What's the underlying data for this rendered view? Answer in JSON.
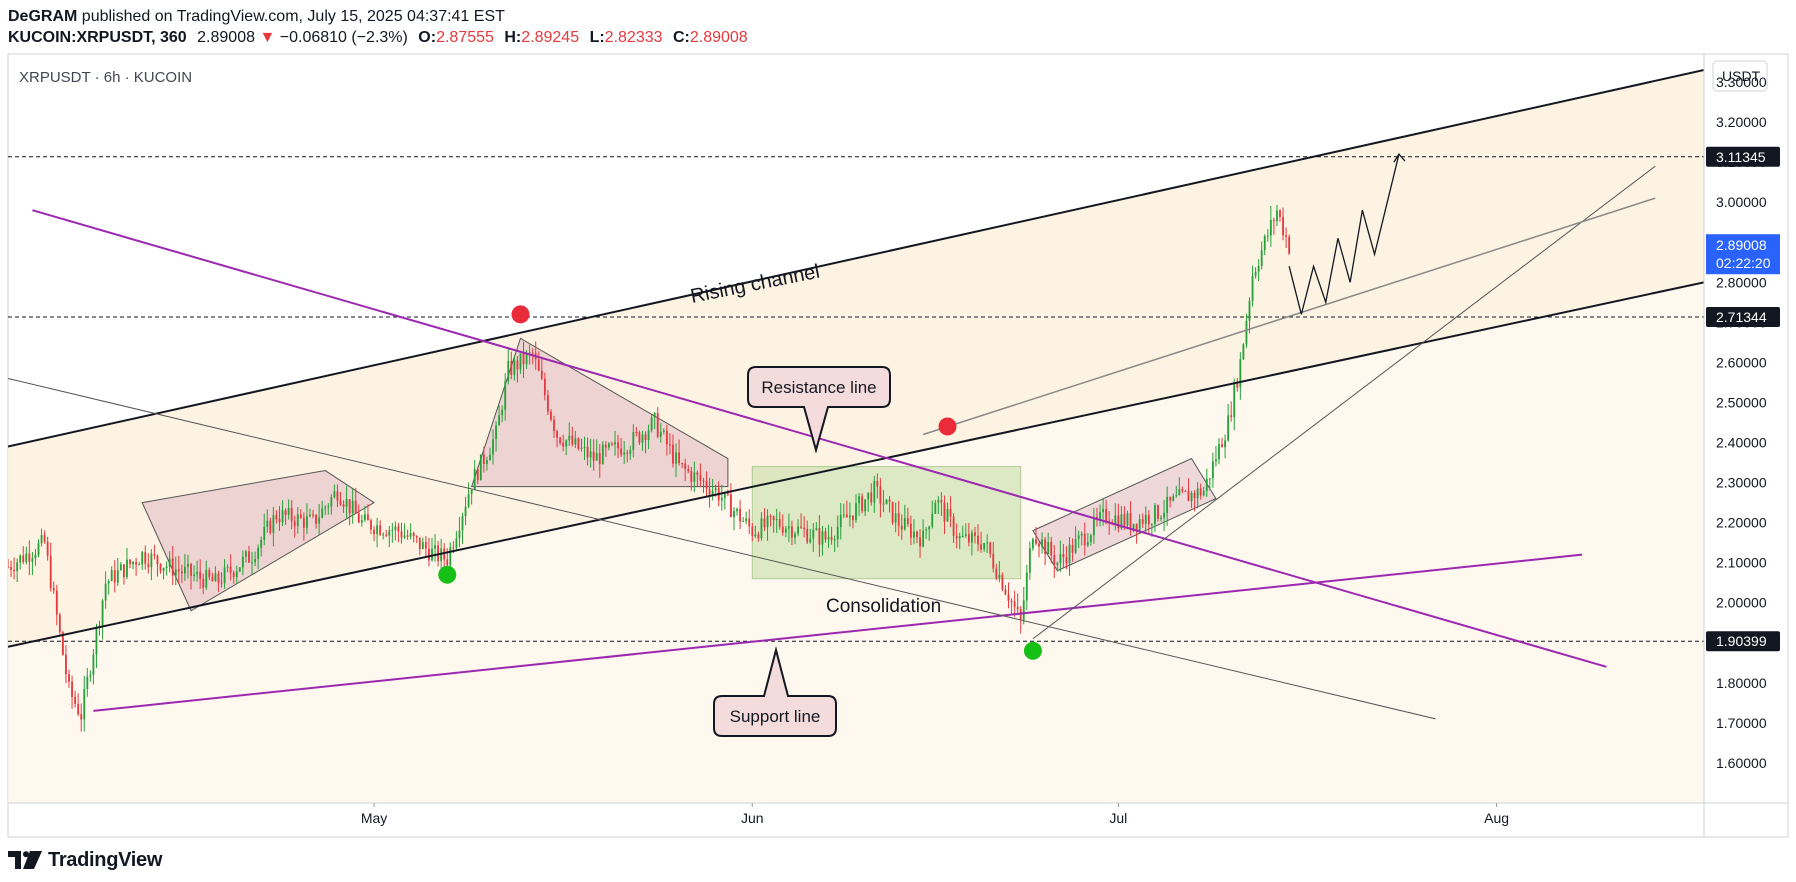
{
  "header": {
    "author": "DeGRAM",
    "published": "published on TradingView.com, July 15, 2025 04:37:41 EST",
    "symbol": "KUCOIN:XRPUSDT, 360",
    "last": "2.89008",
    "change_arrow": "▼",
    "change": "−0.06810 (−2.3%)",
    "o_label": "O:",
    "o_value": "2.87555",
    "h_label": "H:",
    "h_value": "2.89245",
    "l_label": "L:",
    "l_value": "2.82333",
    "c_label": "C:",
    "c_value": "2.89008"
  },
  "footer": {
    "brand": "TradingView"
  },
  "colors": {
    "down": "#e5393d",
    "up": "#26a13a",
    "purple": "#9c27b0",
    "price_badge": "#2962ff",
    "background_band": "#fdf2e0"
  },
  "chart_data": {
    "type": "candlestick",
    "title": "XRPUSDT · 6h · KUCOIN",
    "currency": "USDT",
    "x_ticks": [
      {
        "label": "May",
        "date": "2025-05-01"
      },
      {
        "label": "Jun",
        "date": "2025-06-01"
      },
      {
        "label": "Jul",
        "date": "2025-07-01"
      },
      {
        "label": "Aug",
        "date": "2025-08-01"
      }
    ],
    "x_range": [
      "2025-04-01",
      "2025-08-18"
    ],
    "y_ticks": [
      "1.60000",
      "1.70000",
      "1.80000",
      "1.90000",
      "2.00000",
      "2.10000",
      "2.20000",
      "2.30000",
      "2.40000",
      "2.50000",
      "2.60000",
      "2.70000",
      "2.80000",
      "3.00000",
      "3.10000",
      "3.20000",
      "3.30000"
    ],
    "y_range": [
      1.5,
      3.37
    ],
    "price_labels": [
      {
        "value": "3.11345",
        "style": "dark"
      },
      {
        "value": "2.71344",
        "style": "dark"
      },
      {
        "value": "1.90399",
        "style": "dark"
      },
      {
        "value": "2.89008",
        "countdown": "02:22:20",
        "style": "current"
      }
    ],
    "horizontal_levels": [
      3.11345,
      2.71344,
      1.90399
    ],
    "close_path": [
      [
        "2025-04-01",
        2.09
      ],
      [
        "2025-04-04",
        2.15
      ],
      [
        "2025-04-06",
        1.78
      ],
      [
        "2025-04-07",
        1.72
      ],
      [
        "2025-04-09",
        2.05
      ],
      [
        "2025-04-12",
        2.12
      ],
      [
        "2025-04-15",
        2.08
      ],
      [
        "2025-04-18",
        2.05
      ],
      [
        "2025-04-21",
        2.12
      ],
      [
        "2025-04-23",
        2.22
      ],
      [
        "2025-04-26",
        2.2
      ],
      [
        "2025-04-28",
        2.28
      ],
      [
        "2025-04-30",
        2.2
      ],
      [
        "2025-05-03",
        2.18
      ],
      [
        "2025-05-06",
        2.12
      ],
      [
        "2025-05-07",
        2.11
      ],
      [
        "2025-05-09",
        2.3
      ],
      [
        "2025-05-11",
        2.42
      ],
      [
        "2025-05-12",
        2.58
      ],
      [
        "2025-05-14",
        2.62
      ],
      [
        "2025-05-16",
        2.42
      ],
      [
        "2025-05-19",
        2.36
      ],
      [
        "2025-05-22",
        2.4
      ],
      [
        "2025-05-24",
        2.45
      ],
      [
        "2025-05-26",
        2.34
      ],
      [
        "2025-05-29",
        2.28
      ],
      [
        "2025-06-01",
        2.18
      ],
      [
        "2025-06-03",
        2.2
      ],
      [
        "2025-06-05",
        2.18
      ],
      [
        "2025-06-07",
        2.16
      ],
      [
        "2025-06-09",
        2.22
      ],
      [
        "2025-06-11",
        2.28
      ],
      [
        "2025-06-13",
        2.2
      ],
      [
        "2025-06-15",
        2.16
      ],
      [
        "2025-06-16",
        2.26
      ],
      [
        "2025-06-18",
        2.16
      ],
      [
        "2025-06-20",
        2.15
      ],
      [
        "2025-06-22",
        2.02
      ],
      [
        "2025-06-23",
        1.95
      ],
      [
        "2025-06-24",
        2.18
      ],
      [
        "2025-06-26",
        2.1
      ],
      [
        "2025-06-28",
        2.16
      ],
      [
        "2025-06-30",
        2.22
      ],
      [
        "2025-07-02",
        2.2
      ],
      [
        "2025-07-04",
        2.22
      ],
      [
        "2025-07-06",
        2.26
      ],
      [
        "2025-07-08",
        2.28
      ],
      [
        "2025-07-10",
        2.45
      ],
      [
        "2025-07-11",
        2.6
      ],
      [
        "2025-07-12",
        2.82
      ],
      [
        "2025-07-13",
        2.9
      ],
      [
        "2025-07-14",
        2.98
      ],
      [
        "2025-07-15",
        2.89
      ]
    ],
    "markers": [
      {
        "date": "2025-05-07",
        "value": 2.07,
        "color": "green"
      },
      {
        "date": "2025-05-13",
        "value": 2.72,
        "color": "red"
      },
      {
        "date": "2025-06-17",
        "value": 2.44,
        "color": "red"
      },
      {
        "date": "2025-06-24",
        "value": 1.88,
        "color": "green"
      }
    ],
    "trend_lines": [
      {
        "id": "channel-upper",
        "name": "Rising channel",
        "from": [
          "2025-04-01",
          2.39
        ],
        "to": [
          "2025-08-18",
          3.33
        ],
        "color": "#131722",
        "width": 2
      },
      {
        "id": "channel-lower",
        "from": [
          "2025-04-01",
          1.89
        ],
        "to": [
          "2025-08-18",
          2.8
        ],
        "color": "#131722",
        "width": 2
      },
      {
        "id": "resistance",
        "name": "Resistance line",
        "from": [
          "2025-04-03",
          2.98
        ],
        "to": [
          "2025-08-10",
          1.84
        ],
        "color": "#9c27b0",
        "width": 2
      },
      {
        "id": "support",
        "name": "Support line",
        "from": [
          "2025-04-08",
          1.73
        ],
        "to": [
          "2025-08-08",
          2.12
        ],
        "color": "#9c27b0",
        "width": 2
      },
      {
        "id": "thin-descending",
        "from": [
          "2025-04-01",
          2.56
        ],
        "to": [
          "2025-07-27",
          1.71
        ],
        "color": "#555555",
        "width": 1
      },
      {
        "id": "thin-ascending",
        "from": [
          "2025-06-24",
          1.91
        ],
        "to": [
          "2025-08-14",
          3.09
        ],
        "color": "#555555",
        "width": 1
      },
      {
        "id": "grey-rising",
        "from": [
          "2025-06-15",
          2.42
        ],
        "to": [
          "2025-08-14",
          3.01
        ],
        "color": "#8a8a8a",
        "width": 1.5
      }
    ],
    "zones": [
      {
        "id": "consolidation",
        "name": "Consolidation",
        "from": [
          "2025-06-01",
          2.06
        ],
        "to": [
          "2025-06-23",
          2.34
        ],
        "color": "green"
      }
    ],
    "patterns": [
      {
        "id": "wedge-1",
        "points": [
          [
            "2025-04-12",
            2.25
          ],
          [
            "2025-04-27",
            2.33
          ],
          [
            "2025-05-01",
            2.25
          ],
          [
            "2025-04-16",
            1.98
          ]
        ]
      },
      {
        "id": "triangle",
        "points": [
          [
            "2025-05-09",
            2.29
          ],
          [
            "2025-05-13",
            2.66
          ],
          [
            "2025-05-30",
            2.36
          ],
          [
            "2025-05-30",
            2.29
          ]
        ]
      },
      {
        "id": "wedge-2",
        "points": [
          [
            "2025-06-24",
            2.18
          ],
          [
            "2025-07-07",
            2.36
          ],
          [
            "2025-07-09",
            2.26
          ],
          [
            "2025-06-26",
            2.08
          ]
        ]
      }
    ],
    "projection": [
      [
        "2025-07-15",
        2.84
      ],
      [
        "2025-07-16",
        2.72
      ],
      [
        "2025-07-17",
        2.84
      ],
      [
        "2025-07-18",
        2.75
      ],
      [
        "2025-07-19",
        2.91
      ],
      [
        "2025-07-20",
        2.8
      ],
      [
        "2025-07-21",
        2.98
      ],
      [
        "2025-07-22",
        2.87
      ],
      [
        "2025-07-24",
        3.12
      ]
    ],
    "annotations": [
      {
        "id": "rising-channel",
        "text": "Rising channel"
      },
      {
        "id": "resistance-line",
        "text": "Resistance line"
      },
      {
        "id": "support-line",
        "text": "Support line"
      },
      {
        "id": "consolidation",
        "text": "Consolidation"
      }
    ]
  }
}
